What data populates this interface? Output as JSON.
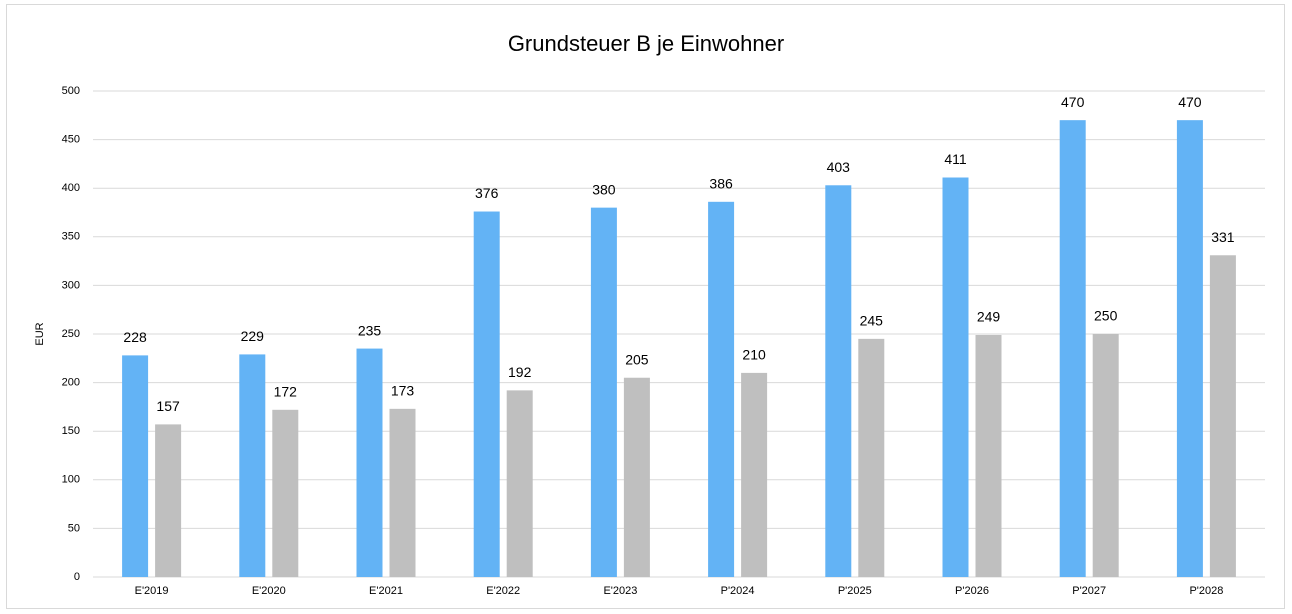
{
  "chart_data": {
    "type": "bar",
    "title": "Grundsteuer B je Einwohner",
    "y_label": "EUR",
    "categories": [
      "E'2019",
      "E'2020",
      "E'2021",
      "E'2022",
      "E'2023",
      "P'2024",
      "P'2025",
      "P'2026",
      "P'2027",
      "P'2028"
    ],
    "series": [
      {
        "color": "#63b3f5",
        "values": [
          228,
          229,
          235,
          376,
          380,
          386,
          403,
          411,
          470,
          470
        ]
      },
      {
        "color": "#bfbfbf",
        "values": [
          157,
          172,
          173,
          192,
          205,
          210,
          245,
          249,
          250,
          331
        ]
      }
    ],
    "ylim": [
      0,
      500
    ],
    "yticks": [
      0,
      50,
      100,
      150,
      200,
      250,
      300,
      350,
      400,
      450,
      500
    ],
    "grid": true
  }
}
